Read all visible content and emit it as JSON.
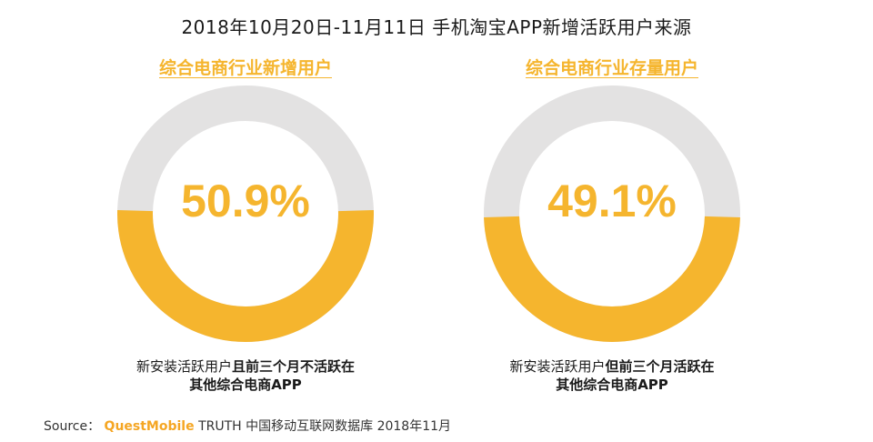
{
  "title": "2018年10月20日-11月11日 手机淘宝APP新增活跃用户来源",
  "colors": {
    "accent": "#F5B52E",
    "track": "#E3E2E2",
    "brand": "#F5A623"
  },
  "panels": [
    {
      "heading": "综合电商行业新增用户",
      "value_label": "50.9%",
      "caption_normal": "新安装活跃用户",
      "caption_bold": "且前三个月不活跃在",
      "caption_line2": "其他综合电商APP"
    },
    {
      "heading": "综合电商行业存量用户",
      "value_label": "49.1%",
      "caption_normal": "新安装活跃用户",
      "caption_bold": "但前三个月活跃在",
      "caption_line2": "其他综合电商APP"
    }
  ],
  "chart_data": [
    {
      "type": "pie",
      "title": "综合电商行业新增用户",
      "values": [
        50.9,
        49.1
      ],
      "labels": [
        "50.9%",
        ""
      ]
    },
    {
      "type": "pie",
      "title": "综合电商行业存量用户",
      "values": [
        49.1,
        50.9
      ],
      "labels": [
        "49.1%",
        ""
      ]
    }
  ],
  "source": {
    "prefix": "Source：",
    "brand": "QuestMobile",
    "suffix": "TRUTH 中国移动互联网数据库 2018年11月"
  }
}
